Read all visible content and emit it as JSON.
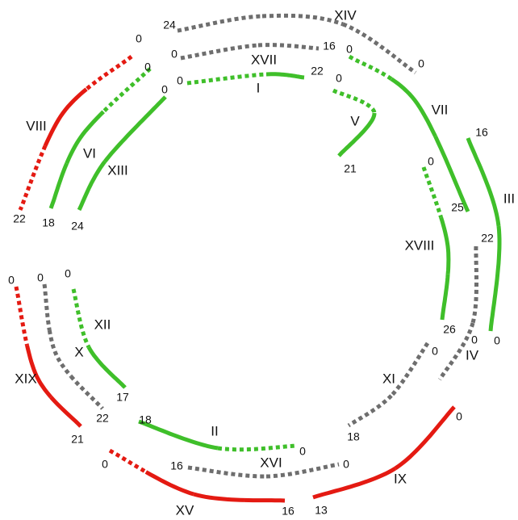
{
  "colors": {
    "green": "#3fbf2a",
    "red": "#e41a12",
    "gray": "#6e6e6e"
  },
  "arcs": [
    {
      "id": "XIV",
      "color": "gray",
      "start_label": "24",
      "end_label": "0"
    },
    {
      "id": "XVII",
      "color": "gray",
      "start_label": "0",
      "end_label": "16"
    },
    {
      "id": "I",
      "color": "green",
      "start_label": "0",
      "end_label": "22"
    },
    {
      "id": "V",
      "color": "green",
      "start_label": "0",
      "end_label": "21"
    },
    {
      "id": "VII",
      "color": "green",
      "start_label": "0",
      "end_label": "25"
    },
    {
      "id": "III",
      "color": "green",
      "start_label": "16",
      "end_label": "0"
    },
    {
      "id": "XVIII",
      "color": "green",
      "start_label": "0",
      "end_label": "26"
    },
    {
      "id": "IV",
      "color": "gray",
      "start_label": "22",
      "end_label": "0"
    },
    {
      "id": "XI",
      "color": "gray",
      "start_label": "0",
      "end_label": "18"
    },
    {
      "id": "IX",
      "color": "red",
      "start_label": "0",
      "end_label": "13"
    },
    {
      "id": "XVI",
      "color": "gray",
      "start_label": "16",
      "end_label": "0"
    },
    {
      "id": "II",
      "color": "green",
      "start_label": "18",
      "end_label": "0"
    },
    {
      "id": "XV",
      "color": "red",
      "start_label": "0",
      "end_label": "16"
    },
    {
      "id": "XII",
      "color": "green",
      "start_label": "0",
      "end_label": "17"
    },
    {
      "id": "X",
      "color": "gray",
      "start_label": "0",
      "end_label": "22"
    },
    {
      "id": "XIX",
      "color": "red",
      "start_label": "0",
      "end_label": "21"
    },
    {
      "id": "VIII",
      "color": "red",
      "start_label": "0",
      "end_label": "22"
    },
    {
      "id": "VI",
      "color": "green",
      "start_label": "0",
      "end_label": "18"
    },
    {
      "id": "XIII",
      "color": "green",
      "start_label": "0",
      "end_label": "24"
    }
  ]
}
